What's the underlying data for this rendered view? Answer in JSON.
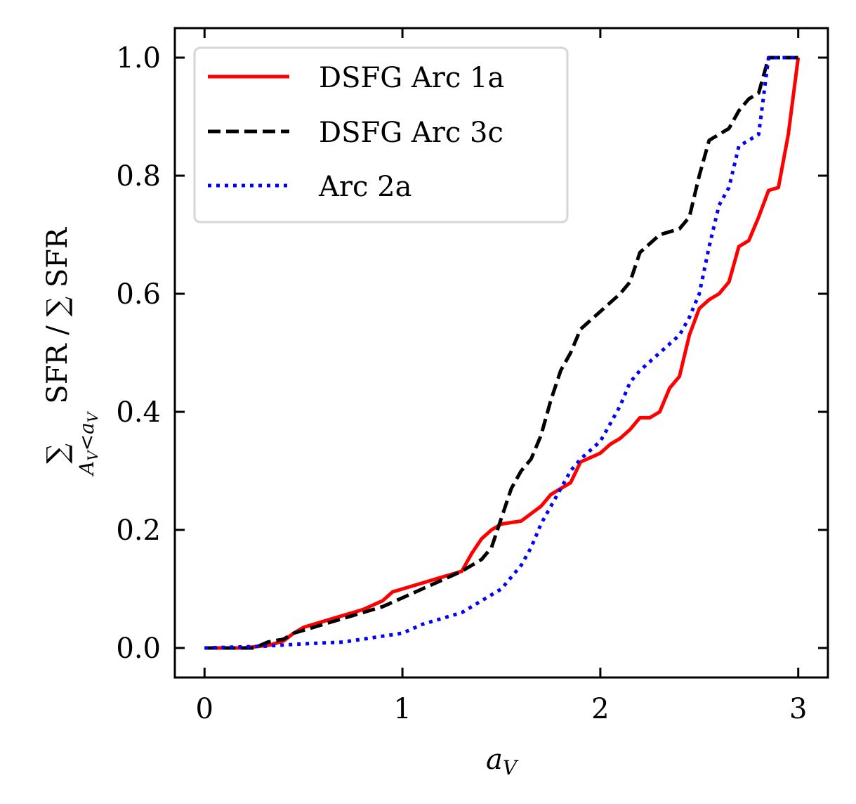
{
  "chart_data": {
    "type": "line",
    "title": "",
    "xlabel": "a_V",
    "ylabel": "∑ SFR / ∑ SFR",
    "ylabel_subscript": "A_V<a_V",
    "xlim": [
      -0.15,
      3.15
    ],
    "ylim": [
      -0.05,
      1.05
    ],
    "xticks": [
      0,
      1,
      2,
      3
    ],
    "xtick_labels": [
      "0",
      "1",
      "2",
      "3"
    ],
    "yticks": [
      0.0,
      0.2,
      0.4,
      0.6,
      0.8,
      1.0
    ],
    "ytick_labels": [
      "0.0",
      "0.2",
      "0.4",
      "0.6",
      "0.8",
      "1.0"
    ],
    "grid": false,
    "legend_position": "top-left",
    "series": [
      {
        "name": "DSFG Arc 1a",
        "color": "#ff0000",
        "style": "solid",
        "x": [
          0,
          0.2,
          0.33,
          0.4,
          0.45,
          0.5,
          0.6,
          0.7,
          0.8,
          0.9,
          0.95,
          1.0,
          1.1,
          1.2,
          1.3,
          1.35,
          1.4,
          1.45,
          1.5,
          1.6,
          1.7,
          1.75,
          1.8,
          1.85,
          1.9,
          2.0,
          2.05,
          2.1,
          2.15,
          2.2,
          2.25,
          2.3,
          2.35,
          2.4,
          2.45,
          2.5,
          2.55,
          2.6,
          2.65,
          2.7,
          2.75,
          2.8,
          2.85,
          2.9,
          2.95,
          3.0
        ],
        "y": [
          0,
          0,
          0.005,
          0.012,
          0.025,
          0.035,
          0.045,
          0.055,
          0.065,
          0.08,
          0.095,
          0.1,
          0.11,
          0.12,
          0.13,
          0.16,
          0.185,
          0.2,
          0.21,
          0.215,
          0.24,
          0.26,
          0.27,
          0.28,
          0.315,
          0.33,
          0.345,
          0.355,
          0.37,
          0.39,
          0.39,
          0.4,
          0.44,
          0.46,
          0.53,
          0.575,
          0.59,
          0.6,
          0.62,
          0.68,
          0.69,
          0.73,
          0.775,
          0.78,
          0.87,
          1.0
        ]
      },
      {
        "name": "DSFG Arc 3c",
        "color": "#000000",
        "style": "dashed",
        "x": [
          0,
          0.25,
          0.32,
          0.4,
          0.45,
          0.5,
          0.6,
          0.7,
          0.8,
          0.9,
          1.0,
          1.1,
          1.2,
          1.3,
          1.4,
          1.45,
          1.5,
          1.55,
          1.6,
          1.65,
          1.7,
          1.75,
          1.8,
          1.85,
          1.9,
          2.0,
          2.1,
          2.15,
          2.2,
          2.3,
          2.4,
          2.45,
          2.5,
          2.55,
          2.6,
          2.65,
          2.7,
          2.75,
          2.8,
          2.85,
          2.9,
          3.0
        ],
        "y": [
          0,
          0,
          0.01,
          0.015,
          0.025,
          0.03,
          0.04,
          0.05,
          0.06,
          0.07,
          0.085,
          0.1,
          0.115,
          0.13,
          0.15,
          0.17,
          0.22,
          0.27,
          0.3,
          0.32,
          0.36,
          0.42,
          0.47,
          0.5,
          0.54,
          0.57,
          0.6,
          0.62,
          0.67,
          0.7,
          0.71,
          0.73,
          0.8,
          0.86,
          0.87,
          0.88,
          0.91,
          0.93,
          0.94,
          1.0,
          1.0,
          1.0
        ]
      },
      {
        "name": "Arc 2a",
        "color": "#0000ff",
        "style": "dotted",
        "x": [
          0,
          0.3,
          0.5,
          0.7,
          0.8,
          0.9,
          1.0,
          1.1,
          1.2,
          1.3,
          1.35,
          1.4,
          1.45,
          1.5,
          1.55,
          1.6,
          1.65,
          1.7,
          1.75,
          1.8,
          1.85,
          1.9,
          2.0,
          2.05,
          2.1,
          2.15,
          2.2,
          2.3,
          2.4,
          2.45,
          2.5,
          2.55,
          2.6,
          2.65,
          2.7,
          2.75,
          2.8,
          2.85,
          2.9,
          3.0
        ],
        "y": [
          0,
          0.003,
          0.007,
          0.01,
          0.015,
          0.02,
          0.025,
          0.04,
          0.05,
          0.06,
          0.07,
          0.08,
          0.09,
          0.1,
          0.12,
          0.14,
          0.17,
          0.21,
          0.24,
          0.27,
          0.3,
          0.32,
          0.35,
          0.38,
          0.41,
          0.45,
          0.47,
          0.5,
          0.53,
          0.56,
          0.6,
          0.68,
          0.75,
          0.78,
          0.85,
          0.86,
          0.87,
          1.0,
          1.0,
          1.0
        ]
      }
    ]
  }
}
